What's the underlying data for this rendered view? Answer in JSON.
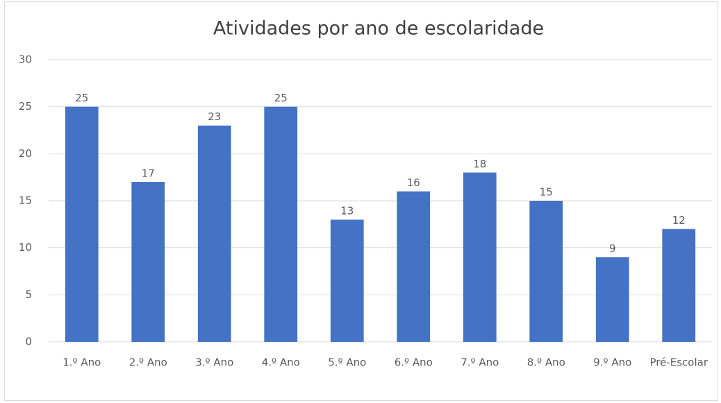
{
  "chart_data": {
    "type": "bar",
    "title": "Atividades por ano de escolaridade",
    "categories": [
      "1.º Ano",
      "2.º Ano",
      "3.º Ano",
      "4.º Ano",
      "5.º Ano",
      "6.º Ano",
      "7.º Ano",
      "8.º Ano",
      "9.º Ano",
      "Pré-Escolar"
    ],
    "values": [
      25,
      17,
      23,
      25,
      13,
      16,
      18,
      15,
      9,
      12
    ],
    "color": "#4472c4",
    "ylim": [
      0,
      30
    ],
    "yticks": [
      0,
      5,
      10,
      15,
      20,
      25,
      30
    ],
    "grid": true
  }
}
